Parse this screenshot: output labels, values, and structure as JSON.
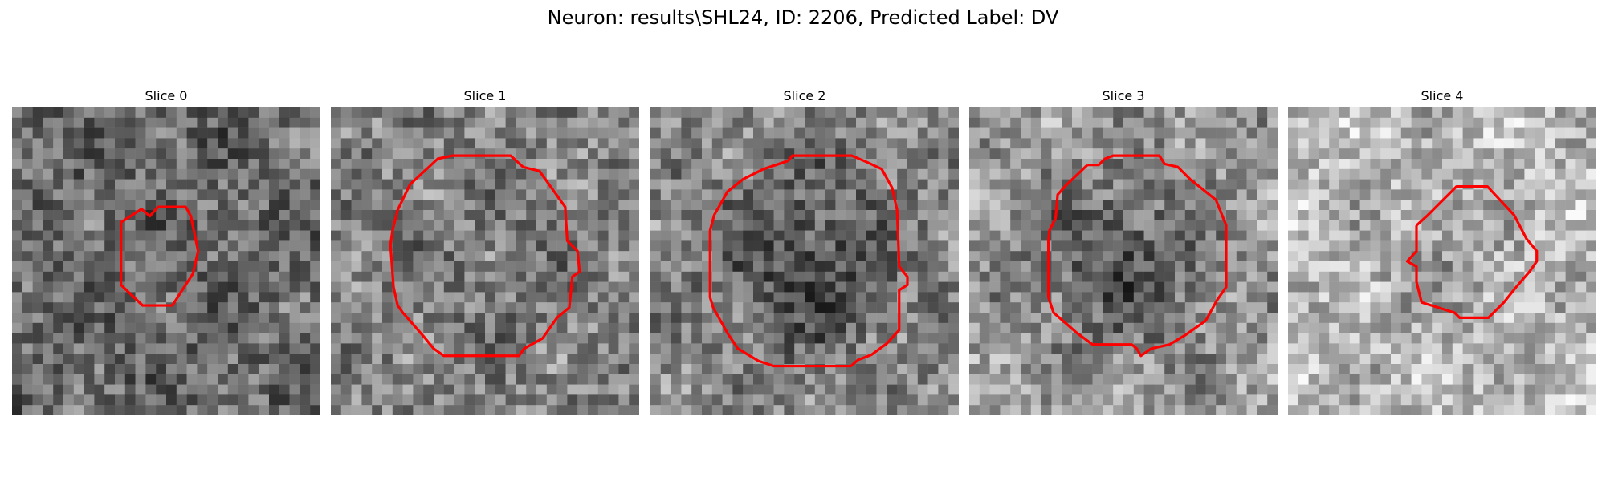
{
  "figure": {
    "title": "Neuron: results\\SHL24, ID: 2206, Predicted Label: DV"
  },
  "panels": [
    {
      "title": "Slice 0",
      "seed": 11,
      "tone": 0.42,
      "center_tone": 0.42,
      "blob": 0.0,
      "contour_color": "#ff0000"
    },
    {
      "title": "Slice 1",
      "seed": 23,
      "tone": 0.52,
      "center_tone": 0.44,
      "blob": 0.55,
      "contour_color": "#ff0000"
    },
    {
      "title": "Slice 2",
      "seed": 37,
      "tone": 0.55,
      "center_tone": 0.22,
      "blob": 0.78,
      "contour_color": "#ff0000"
    },
    {
      "title": "Slice 3",
      "seed": 51,
      "tone": 0.62,
      "center_tone": 0.18,
      "blob": 0.65,
      "contour_color": "#ff0000"
    },
    {
      "title": "Slice 4",
      "seed": 67,
      "tone": 0.74,
      "center_tone": 0.45,
      "blob": 0.38,
      "contour_color": "#ff0000"
    }
  ]
}
